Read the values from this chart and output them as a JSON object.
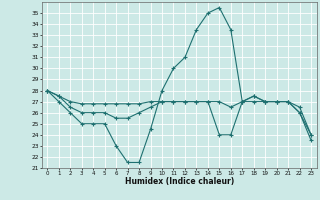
{
  "title": "",
  "xlabel": "Humidex (Indice chaleur)",
  "ylabel": "",
  "xlim": [
    -0.5,
    23.5
  ],
  "ylim": [
    21,
    36
  ],
  "yticks": [
    21,
    22,
    23,
    24,
    25,
    26,
    27,
    28,
    29,
    30,
    31,
    32,
    33,
    34,
    35
  ],
  "xticks": [
    0,
    1,
    2,
    3,
    4,
    5,
    6,
    7,
    8,
    9,
    10,
    11,
    12,
    13,
    14,
    15,
    16,
    17,
    18,
    19,
    20,
    21,
    22,
    23
  ],
  "bg_color": "#cce9e6",
  "line_color": "#1e7070",
  "grid_color": "#ffffff",
  "line1_y": [
    28,
    27,
    26,
    25,
    25,
    25,
    23,
    21.5,
    21.5,
    24.5,
    28,
    30,
    31,
    33.5,
    35,
    35.5,
    33.5,
    27,
    27,
    27,
    27,
    27,
    26,
    23.5
  ],
  "line2_y": [
    28,
    27.5,
    26.5,
    26,
    26,
    26,
    25.5,
    25.5,
    26,
    26.5,
    27,
    27,
    27,
    27,
    27,
    24,
    24,
    27,
    27.5,
    27,
    27,
    27,
    26,
    24
  ],
  "line3_y": [
    28,
    27.5,
    27,
    26.8,
    26.8,
    26.8,
    26.8,
    26.8,
    26.8,
    27,
    27,
    27,
    27,
    27,
    27,
    27,
    26.5,
    27,
    27.5,
    27,
    27,
    27,
    26.5,
    24
  ],
  "marker": "+"
}
